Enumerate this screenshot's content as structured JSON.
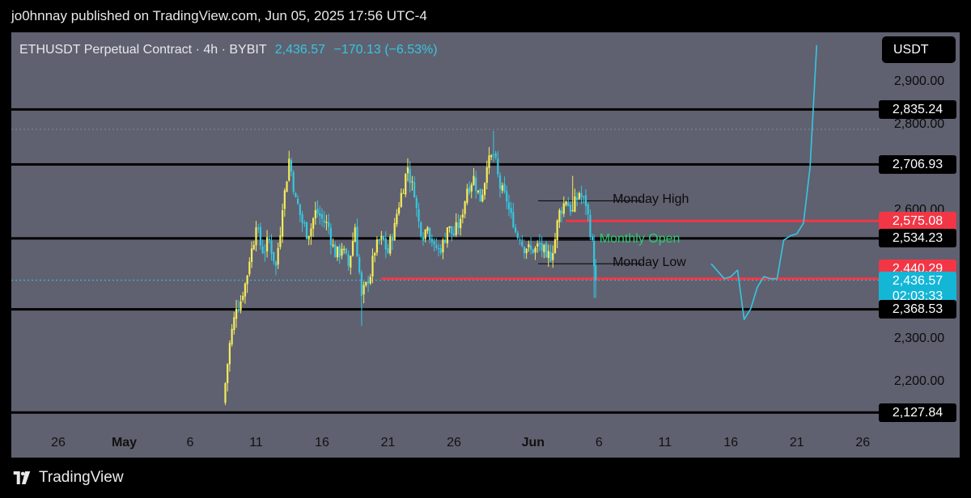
{
  "header": {
    "publish_text": "jo0hnnay published on TradingView.com, Jun 05, 2025 17:56 UTC-4"
  },
  "legend": {
    "symbol": "ETHUSDT Perpetual Contract · 4h · BYBIT",
    "price": "2,436.57",
    "change": "−170.13 (−6.53%)"
  },
  "currency": "USDT",
  "footer": {
    "brand": "TradingView",
    "logo_icon": "tradingview-logo-icon"
  },
  "colors": {
    "background": "#5f6170",
    "up_candle": "#f5ec5c",
    "down_candle": "#35c7e0",
    "red_level": "#f23645",
    "projection": "#35c7e0",
    "monthly_open_text": "#2ecc71"
  },
  "chart_data": {
    "type": "candlestick",
    "symbol": "ETHUSDT",
    "timeframe": "4h",
    "exchange": "BYBIT",
    "ylim": [
      2100,
      3000
    ],
    "x_tick_labels": [
      {
        "label": "26",
        "date": "2025-04-26"
      },
      {
        "label": "May",
        "date": "2025-05-01",
        "bold": true
      },
      {
        "label": "6",
        "date": "2025-05-06"
      },
      {
        "label": "11",
        "date": "2025-05-11"
      },
      {
        "label": "16",
        "date": "2025-05-16"
      },
      {
        "label": "21",
        "date": "2025-05-21"
      },
      {
        "label": "26",
        "date": "2025-05-26"
      },
      {
        "label": "Jun",
        "date": "2025-06-01",
        "bold": true
      },
      {
        "label": "6",
        "date": "2025-06-06"
      },
      {
        "label": "11",
        "date": "2025-06-11"
      },
      {
        "label": "16",
        "date": "2025-06-16"
      },
      {
        "label": "21",
        "date": "2025-06-21"
      },
      {
        "label": "26",
        "date": "2025-06-26"
      }
    ],
    "y_tick_labels": [
      "2,900.00",
      "2,800.00",
      "2,600.00",
      "2,300.00",
      "2,200.00"
    ],
    "price_tags": [
      {
        "value": "2,835.24",
        "style": "black"
      },
      {
        "value": "2,706.93",
        "style": "black"
      },
      {
        "value": "2,575.08",
        "style": "red"
      },
      {
        "value": "2,534.23",
        "style": "black"
      },
      {
        "value": "2,440.29",
        "style": "red"
      },
      {
        "value": "2,436.57",
        "sub": "02:03:33",
        "style": "cyan"
      },
      {
        "value": "2,368.53",
        "style": "black"
      },
      {
        "value": "2,127.84",
        "style": "black"
      }
    ],
    "horizontal_levels": [
      {
        "price": 2835.24,
        "color": "black"
      },
      {
        "price": 2706.93,
        "color": "black"
      },
      {
        "price": 2534.23,
        "color": "black"
      },
      {
        "price": 2368.53,
        "color": "black"
      },
      {
        "price": 2127.84,
        "color": "black"
      },
      {
        "price": 2575.08,
        "color": "red",
        "from": "2025-06-03T12:00"
      },
      {
        "price": 2440.29,
        "color": "red",
        "from": "2025-05-20T12:00"
      }
    ],
    "annotations": [
      {
        "text": "Monday High",
        "price": 2622,
        "date": "2025-06-02",
        "line_to": "2025-06-08"
      },
      {
        "text": "Monthly Open",
        "price": 2530,
        "date": "2025-06-01",
        "line_to": "2025-06-08",
        "color": "green"
      },
      {
        "text": "Monday Low",
        "price": 2475,
        "date": "2025-06-02",
        "line_to": "2025-06-08"
      }
    ],
    "price_path": [
      {
        "d": "2025-05-08T12:00",
        "p": 2150
      },
      {
        "d": "2025-05-09T00:00",
        "p": 2290
      },
      {
        "d": "2025-05-09T12:00",
        "p": 2370
      },
      {
        "d": "2025-05-10T00:00",
        "p": 2400
      },
      {
        "d": "2025-05-10T12:00",
        "p": 2480
      },
      {
        "d": "2025-05-11T00:00",
        "p": 2560
      },
      {
        "d": "2025-05-11T12:00",
        "p": 2500
      },
      {
        "d": "2025-05-12T00:00",
        "p": 2530
      },
      {
        "d": "2025-05-12T12:00",
        "p": 2470
      },
      {
        "d": "2025-05-13T00:00",
        "p": 2600
      },
      {
        "d": "2025-05-13T12:00",
        "p": 2720
      },
      {
        "d": "2025-05-14T00:00",
        "p": 2630
      },
      {
        "d": "2025-05-14T12:00",
        "p": 2570
      },
      {
        "d": "2025-05-15T00:00",
        "p": 2540
      },
      {
        "d": "2025-05-15T12:00",
        "p": 2600
      },
      {
        "d": "2025-05-16T00:00",
        "p": 2580
      },
      {
        "d": "2025-05-16T12:00",
        "p": 2560
      },
      {
        "d": "2025-05-17T00:00",
        "p": 2490
      },
      {
        "d": "2025-05-17T12:00",
        "p": 2510
      },
      {
        "d": "2025-05-18T00:00",
        "p": 2470
      },
      {
        "d": "2025-05-18T12:00",
        "p": 2560
      },
      {
        "d": "2025-05-19T00:00",
        "p": 2400
      },
      {
        "d": "2025-05-19T12:00",
        "p": 2430
      },
      {
        "d": "2025-05-20T00:00",
        "p": 2500
      },
      {
        "d": "2025-05-20T12:00",
        "p": 2540
      },
      {
        "d": "2025-05-21T00:00",
        "p": 2500
      },
      {
        "d": "2025-05-21T12:00",
        "p": 2570
      },
      {
        "d": "2025-05-22T00:00",
        "p": 2640
      },
      {
        "d": "2025-05-22T12:00",
        "p": 2700
      },
      {
        "d": "2025-05-23T00:00",
        "p": 2630
      },
      {
        "d": "2025-05-23T12:00",
        "p": 2540
      },
      {
        "d": "2025-05-24T00:00",
        "p": 2560
      },
      {
        "d": "2025-05-24T12:00",
        "p": 2520
      },
      {
        "d": "2025-05-25T00:00",
        "p": 2500
      },
      {
        "d": "2025-05-25T12:00",
        "p": 2560
      },
      {
        "d": "2025-05-26T00:00",
        "p": 2540
      },
      {
        "d": "2025-05-26T12:00",
        "p": 2580
      },
      {
        "d": "2025-05-27T00:00",
        "p": 2650
      },
      {
        "d": "2025-05-27T12:00",
        "p": 2680
      },
      {
        "d": "2025-05-28T00:00",
        "p": 2620
      },
      {
        "d": "2025-05-28T12:00",
        "p": 2700
      },
      {
        "d": "2025-05-29T00:00",
        "p": 2730
      },
      {
        "d": "2025-05-29T12:00",
        "p": 2650
      },
      {
        "d": "2025-05-30T00:00",
        "p": 2620
      },
      {
        "d": "2025-05-30T12:00",
        "p": 2560
      },
      {
        "d": "2025-05-31T00:00",
        "p": 2530
      },
      {
        "d": "2025-05-31T12:00",
        "p": 2510
      },
      {
        "d": "2025-06-01T00:00",
        "p": 2500
      },
      {
        "d": "2025-06-01T12:00",
        "p": 2520
      },
      {
        "d": "2025-06-02T00:00",
        "p": 2490
      },
      {
        "d": "2025-06-02T12:00",
        "p": 2500
      },
      {
        "d": "2025-06-03T00:00",
        "p": 2600
      },
      {
        "d": "2025-06-03T12:00",
        "p": 2620
      },
      {
        "d": "2025-06-04T00:00",
        "p": 2600
      },
      {
        "d": "2025-06-04T12:00",
        "p": 2640
      },
      {
        "d": "2025-06-05T00:00",
        "p": 2610
      },
      {
        "d": "2025-06-05T12:00",
        "p": 2530
      },
      {
        "d": "2025-06-05T18:00",
        "p": 2436.57
      }
    ],
    "wick_extremes": [
      {
        "d": "2025-05-08T12:00",
        "p": 2130
      },
      {
        "d": "2025-05-13T12:00",
        "p": 2735
      },
      {
        "d": "2025-05-19T00:00",
        "p": 2330
      },
      {
        "d": "2025-05-22T12:00",
        "p": 2720
      },
      {
        "d": "2025-05-29T00:00",
        "p": 2785
      },
      {
        "d": "2025-06-04T00:00",
        "p": 2680
      },
      {
        "d": "2025-06-05T18:00",
        "p": 2395
      }
    ],
    "projection": [
      {
        "d": "2025-06-14T12:00",
        "p": 2475
      },
      {
        "d": "2025-06-15T12:00",
        "p": 2440
      },
      {
        "d": "2025-06-16T00:00",
        "p": 2445
      },
      {
        "d": "2025-06-16T12:00",
        "p": 2460
      },
      {
        "d": "2025-06-17T00:00",
        "p": 2345
      },
      {
        "d": "2025-06-17T12:00",
        "p": 2370
      },
      {
        "d": "2025-06-18T00:00",
        "p": 2420
      },
      {
        "d": "2025-06-18T12:00",
        "p": 2445
      },
      {
        "d": "2025-06-19T00:00",
        "p": 2440
      },
      {
        "d": "2025-06-19T12:00",
        "p": 2440
      },
      {
        "d": "2025-06-20T00:00",
        "p": 2530
      },
      {
        "d": "2025-06-20T12:00",
        "p": 2540
      },
      {
        "d": "2025-06-21T00:00",
        "p": 2545
      },
      {
        "d": "2025-06-21T12:00",
        "p": 2570
      },
      {
        "d": "2025-06-22T00:00",
        "p": 2700
      },
      {
        "d": "2025-06-22T12:00",
        "p": 2985
      }
    ]
  }
}
